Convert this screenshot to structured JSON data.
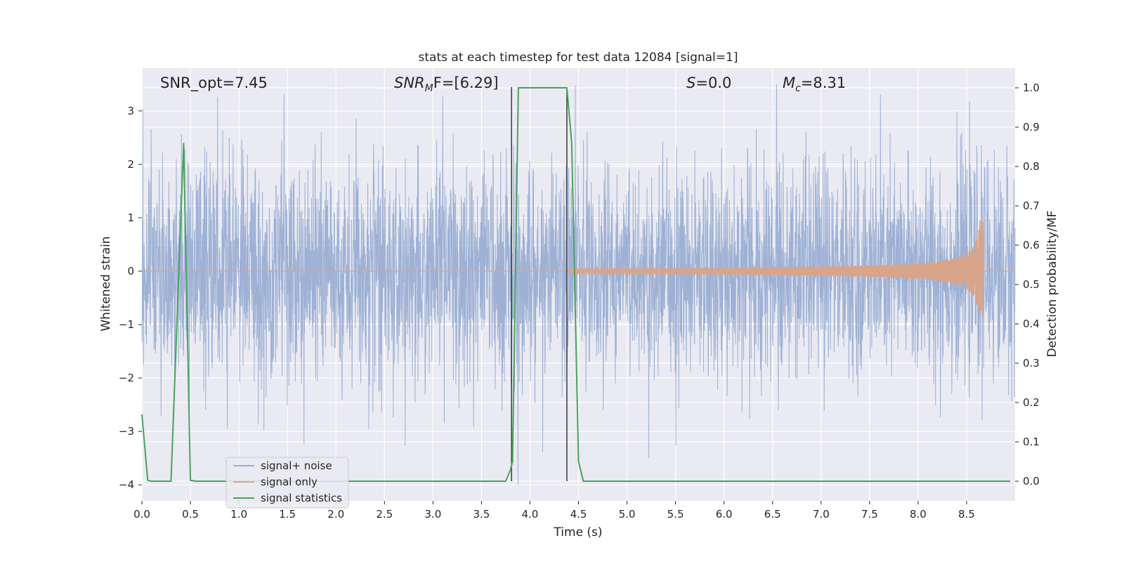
{
  "chart_data": {
    "type": "line",
    "title": "stats at each timestep for test data 12084 [signal=1]",
    "xlabel": "Time (s)",
    "ylabel_left": "Whitened strain",
    "ylabel_right": "Detection probability/MF",
    "xlim": [
      0,
      9.0
    ],
    "ylim_left": [
      -4.3,
      3.8
    ],
    "ylim_right": [
      -0.05,
      1.05
    ],
    "x_ticks": [
      0.0,
      0.5,
      1.0,
      1.5,
      2.0,
      2.5,
      3.0,
      3.5,
      4.0,
      4.5,
      5.0,
      5.5,
      6.0,
      6.5,
      7.0,
      7.5,
      8.0,
      8.5
    ],
    "x_tick_labels": [
      "0.0",
      "0.5",
      "1.0",
      "1.5",
      "2.0",
      "2.5",
      "3.0",
      "3.5",
      "4.0",
      "4.5",
      "5.0",
      "5.5",
      "6.0",
      "6.5",
      "7.0",
      "7.5",
      "8.0",
      "8.5"
    ],
    "y_left_ticks": [
      3,
      2,
      1,
      0,
      -1,
      -2,
      -3,
      -4
    ],
    "y_left_tick_labels": [
      "3",
      "2",
      "1",
      "0",
      "−1",
      "−2",
      "−3",
      "−4"
    ],
    "y_right_ticks": [
      1.0,
      0.9,
      0.8,
      0.7,
      0.6,
      0.5,
      0.4,
      0.3,
      0.2,
      0.1,
      0.0
    ],
    "y_right_tick_labels": [
      "1.0",
      "0.9",
      "0.8",
      "0.7",
      "0.6",
      "0.5",
      "0.4",
      "0.3",
      "0.2",
      "0.1",
      "0.0"
    ],
    "grid": true,
    "annotations": {
      "snr_opt": "SNR_opt=7.45",
      "snr_mf_name": "SNR",
      "snr_mf_sub": "M",
      "snr_mf_rest": "F=[6.29]",
      "s_name": "S",
      "s_rest": "=0.0",
      "mc_name": "M",
      "mc_sub": "c",
      "mc_rest": "=8.31"
    },
    "legend_position": "lower-left",
    "series": [
      {
        "name": "signal+ noise",
        "color": "#9aaed3",
        "axis": "left",
        "noise_std": 1.0,
        "noise_range": [
          -4.0,
          3.5
        ]
      },
      {
        "name": "signal only",
        "color": "#d9a58a",
        "axis": "left",
        "chirp_start": 4.4,
        "chirp_end": 8.67,
        "peak_amplitude": 0.95
      },
      {
        "name": "signal statistics",
        "color": "#4aa25e",
        "axis": "right",
        "x": [
          0.0,
          0.06,
          0.1,
          0.3,
          0.43,
          0.5,
          0.56,
          3.75,
          3.8,
          3.82,
          3.88,
          4.38,
          4.43,
          4.5,
          4.55,
          8.95
        ],
        "y": [
          0.17,
          0.002,
          0.0,
          0.0,
          0.86,
          0.002,
          0.0,
          0.0,
          0.03,
          0.05,
          1.0,
          1.0,
          0.86,
          0.05,
          0.0,
          0.0
        ]
      }
    ],
    "vertical_lines": [
      3.81,
      4.38
    ],
    "vertical_line_color": "#3a3a3a"
  }
}
